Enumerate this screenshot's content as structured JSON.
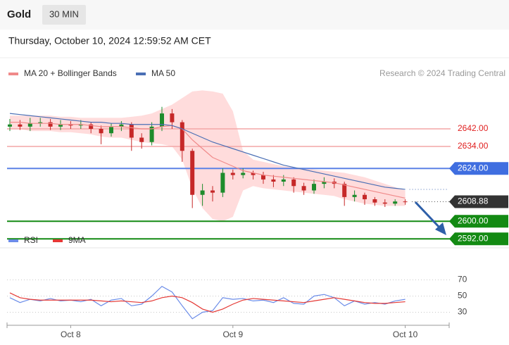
{
  "header": {
    "title": "Gold",
    "timeframe": "30 MIN"
  },
  "timestamp": "Thursday, October 10, 2024 12:59:52 AM CET",
  "chart_data": [
    {
      "type": "candlestick",
      "credit": "Research © 2024 Trading Central",
      "categories": [
        null,
        null,
        null,
        null,
        null,
        null,
        "Oct 8",
        null,
        null,
        null,
        null,
        null,
        null,
        null,
        null,
        null,
        null,
        null,
        null,
        null,
        null,
        null,
        "Oct 9",
        null,
        null,
        null,
        null,
        null,
        null,
        null,
        null,
        null,
        null,
        null,
        null,
        null,
        null,
        null,
        null,
        "Oct 10"
      ],
      "open": [
        2643,
        2644,
        2643,
        2644.5,
        2645,
        2643,
        2644,
        2643.5,
        2644,
        2642,
        2640,
        2643,
        2644,
        2638,
        2636,
        2643,
        2649,
        2645,
        2632,
        2612,
        2614,
        2613,
        2622,
        2621,
        2622,
        2621,
        2619,
        2618,
        2619,
        2616,
        2614,
        2617,
        2618,
        2617,
        2611,
        2612,
        2610,
        2608.5,
        2608,
        2609
      ],
      "high": [
        2646.5,
        2646,
        2647,
        2647,
        2646.5,
        2646,
        2645.5,
        2646,
        2645,
        2643.5,
        2644.5,
        2645.5,
        2645,
        2640,
        2645,
        2652,
        2651,
        2646,
        2633,
        2617,
        2616,
        2624,
        2623.5,
        2624,
        2623,
        2622.5,
        2621,
        2621,
        2620,
        2617.5,
        2619,
        2620,
        2619.5,
        2618,
        2614,
        2613,
        2611,
        2610,
        2610,
        2610
      ],
      "low": [
        2641,
        2641.5,
        2641,
        2643,
        2641.5,
        2641.5,
        2642,
        2642,
        2640,
        2635,
        2638.5,
        2641,
        2632,
        2633,
        2634.5,
        2641,
        2642,
        2627,
        2606,
        2607,
        2609,
        2611,
        2619,
        2619.5,
        2619,
        2617,
        2615.5,
        2616,
        2613,
        2612,
        2612.5,
        2615,
        2615,
        2607,
        2609,
        2607.5,
        2607,
        2606.5,
        2607,
        2607.5
      ],
      "close": [
        2644,
        2643,
        2644.5,
        2645,
        2643,
        2644,
        2643.5,
        2644,
        2642,
        2640,
        2643,
        2644,
        2638,
        2636,
        2643,
        2649,
        2645,
        2632,
        2612,
        2614,
        2613,
        2622,
        2621,
        2622,
        2621,
        2619,
        2618,
        2619,
        2616,
        2614,
        2617,
        2618,
        2617,
        2611,
        2612,
        2610,
        2608.5,
        2608,
        2609,
        2608.88
      ],
      "up_color": "#1e8c2c",
      "down_color": "#c62828",
      "series": [
        {
          "name": "MA 20 + Bollinger Bands",
          "color": "#f08a8a",
          "band_color": "#ffdcdc",
          "values": [
            2645,
            2645,
            2644.5,
            2644.5,
            2644.5,
            2644,
            2644,
            2644,
            2643.5,
            2643,
            2643,
            2643,
            2642.5,
            2642,
            2642,
            2643,
            2643.5,
            2642,
            2637,
            2633,
            2629,
            2627,
            2625,
            2623,
            2622,
            2621,
            2620.5,
            2620,
            2619.5,
            2619,
            2618.5,
            2618,
            2617.5,
            2616.5,
            2615.5,
            2614.5,
            2613.5,
            2612.5,
            2611.5,
            2610.5
          ],
          "band_upper": [
            2648,
            2648,
            2648,
            2648,
            2648,
            2647.5,
            2647.5,
            2647,
            2647,
            2647,
            2647,
            2647,
            2647.5,
            2648,
            2649,
            2651,
            2653,
            2656,
            2659,
            2659.5,
            2659,
            2658,
            2650,
            2632,
            2628,
            2627,
            2626,
            2625,
            2624.5,
            2624,
            2623.5,
            2623,
            2622.5,
            2622,
            2621,
            2620,
            2618.5,
            2617,
            2615.5,
            2614
          ],
          "band_lower": [
            2642,
            2642,
            2641,
            2641,
            2641,
            2640.5,
            2640.5,
            2640,
            2639.5,
            2638.5,
            2638,
            2638,
            2637,
            2636,
            2635.5,
            2635,
            2634,
            2628,
            2615,
            2606,
            2601,
            2600,
            2602,
            2614,
            2616,
            2615,
            2614.5,
            2614,
            2613.5,
            2613,
            2612.5,
            2612,
            2611.5,
            2610,
            2609,
            2608,
            2607.5,
            2607,
            2607,
            2607
          ]
        },
        {
          "name": "MA 50",
          "color": "#4a6fb5",
          "values": [
            2649,
            2648.5,
            2648,
            2647.5,
            2647,
            2646.5,
            2646,
            2645.5,
            2645,
            2645,
            2644.5,
            2644.5,
            2644,
            2644,
            2644,
            2644,
            2643.5,
            2642,
            2640,
            2638,
            2636,
            2634.5,
            2633,
            2631.5,
            2630,
            2628.5,
            2627,
            2625.5,
            2624.5,
            2623.5,
            2622.5,
            2621.5,
            2620.5,
            2619.5,
            2618.5,
            2617.5,
            2616.5,
            2615.5,
            2615,
            2614.5
          ]
        }
      ],
      "levels": [
        {
          "value": 2642,
          "label": "2642.00",
          "color": "#f4a6a6",
          "label_color": "#e02020",
          "style": "text"
        },
        {
          "value": 2634,
          "label": "2634.00",
          "color": "#f4a6a6",
          "label_color": "#e02020",
          "style": "text"
        },
        {
          "value": 2624,
          "label": "2624.00",
          "color": "#5b82e6",
          "label_color": "#3f6ee0",
          "style": "box"
        },
        {
          "value": 2608.88,
          "label": "2608.88",
          "color": "#555555",
          "label_color": "#333333",
          "style": "dotted"
        },
        {
          "value": 2600,
          "label": "2600.00",
          "color": "#138a13",
          "label_color": "#138a13",
          "style": "box"
        },
        {
          "value": 2592,
          "label": "2592.00",
          "color": "#138a13",
          "label_color": "#138a13",
          "style": "box"
        }
      ],
      "ylim": [
        2590,
        2660
      ]
    },
    {
      "type": "line",
      "series": [
        {
          "name": "RSI",
          "color": "#6b8ce8",
          "values": [
            48,
            42,
            46,
            44,
            47,
            44,
            45,
            43,
            46,
            38,
            45,
            47,
            38,
            40,
            50,
            62,
            55,
            38,
            22,
            30,
            32,
            48,
            46,
            47,
            44,
            45,
            42,
            48,
            41,
            40,
            50,
            52,
            48,
            38,
            44,
            40,
            42,
            40,
            44,
            46
          ]
        },
        {
          "name": "9MA",
          "color": "#e53935",
          "values": [
            54,
            48,
            46,
            45,
            45,
            45,
            45,
            45,
            45,
            44,
            43,
            44,
            43,
            42,
            44,
            48,
            50,
            48,
            42,
            34,
            30,
            34,
            40,
            45,
            47,
            46,
            45,
            44,
            43,
            42,
            44,
            46,
            48,
            46,
            44,
            42,
            41,
            41,
            42,
            43
          ]
        }
      ],
      "ylim": [
        20,
        100
      ],
      "yticks": [
        30,
        50,
        70
      ],
      "grid": true
    }
  ]
}
